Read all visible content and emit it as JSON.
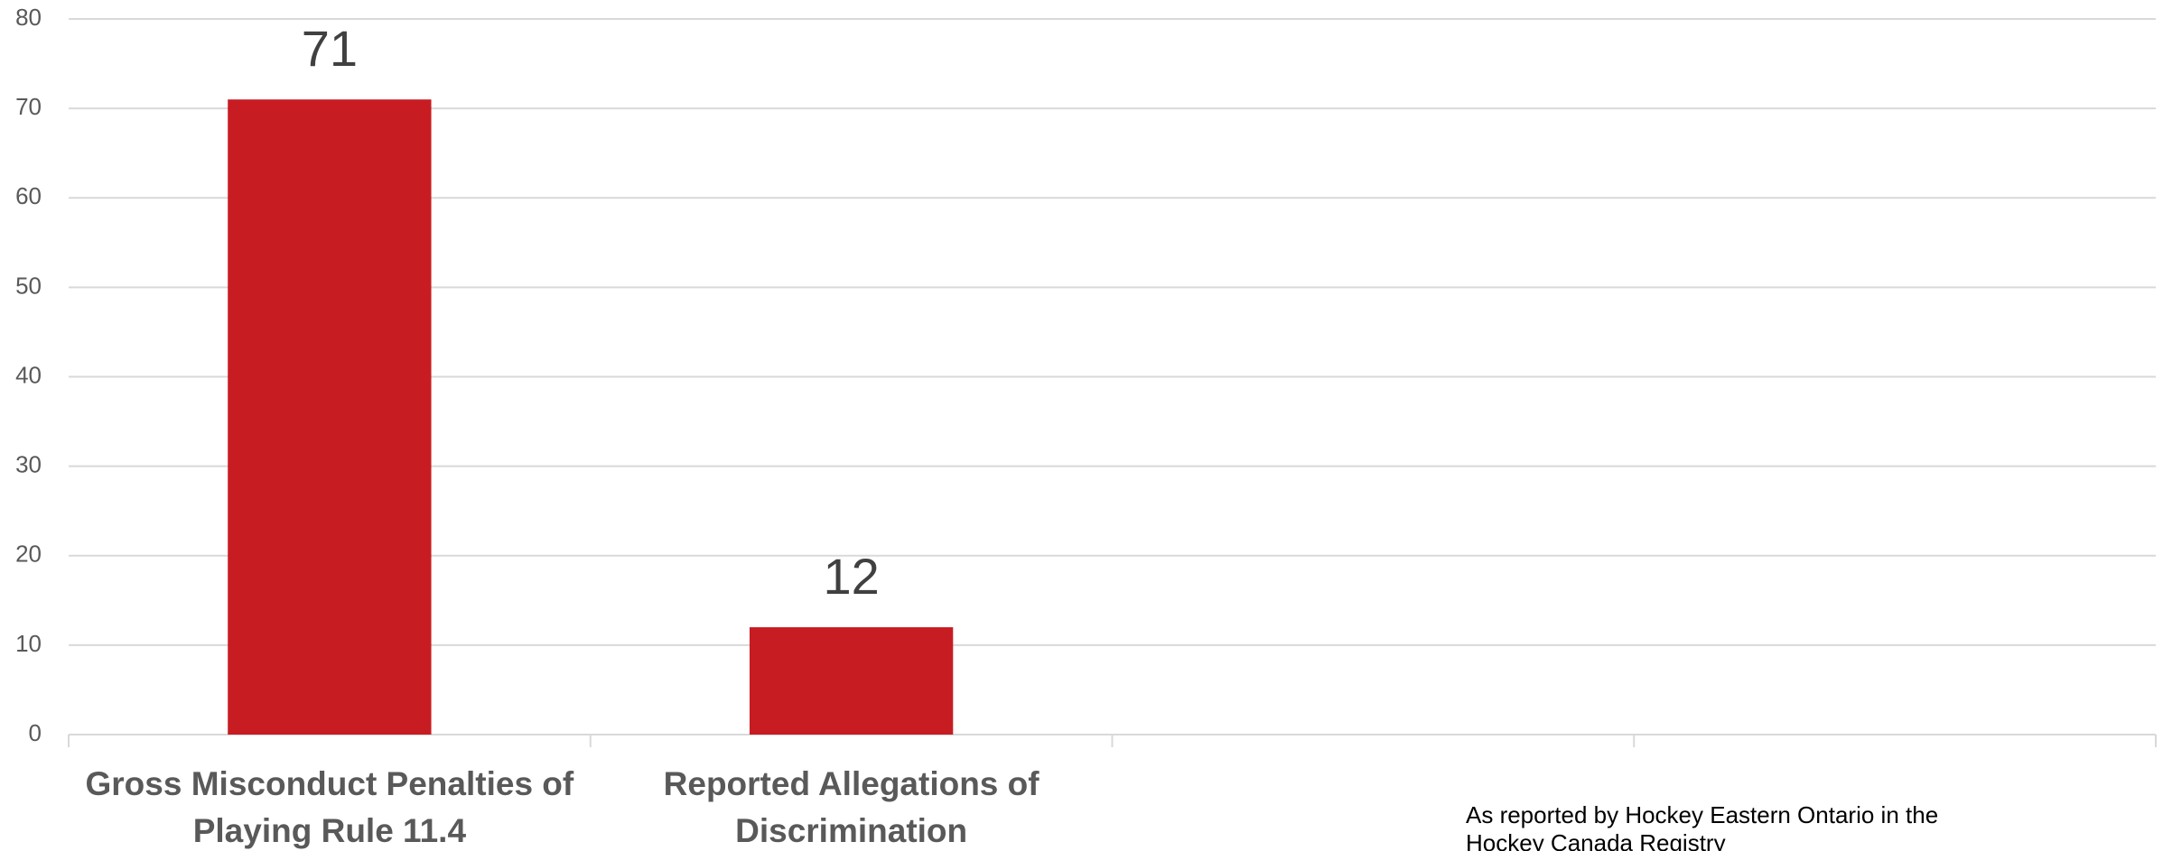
{
  "chart_data": {
    "type": "bar",
    "categories": [
      "Gross Misconduct Penalties of Playing Rule 11.4",
      "Reported Allegations of Discrimination",
      null,
      null
    ],
    "values": [
      71,
      12,
      null,
      null
    ],
    "color": "#c81c23",
    "ylim": [
      0,
      80
    ],
    "yticks": [
      0,
      10,
      20,
      30,
      40,
      50,
      60,
      70,
      80
    ],
    "grid": true,
    "annotation": "As reported by Hockey Eastern Ontario in the Hockey Canada Registry"
  }
}
